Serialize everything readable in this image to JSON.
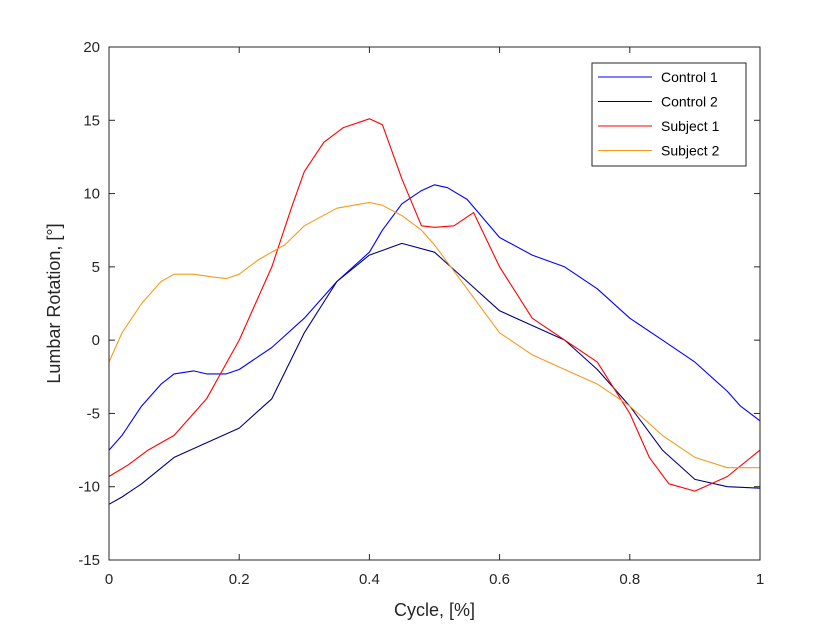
{
  "chart_data": {
    "type": "line",
    "title": "",
    "xlabel": "Cycle, [%]",
    "ylabel": "Lumbar Rotation, [°]",
    "xlim": [
      0,
      1
    ],
    "ylim": [
      -15,
      20
    ],
    "xticks": [
      0,
      0.2,
      0.4,
      0.6,
      0.8,
      1
    ],
    "xtick_labels": [
      "0",
      "0.2",
      "0.4",
      "0.6",
      "0.8",
      "1"
    ],
    "yticks": [
      -15,
      -10,
      -5,
      0,
      5,
      10,
      15,
      20
    ],
    "ytick_labels": [
      "-15",
      "-10",
      "-5",
      "0",
      "5",
      "10",
      "15",
      "20"
    ],
    "grid": false,
    "legend_position": "top-right",
    "series": [
      {
        "name": "Control 1",
        "color": "#0000ff",
        "x": [
          0,
          0.02,
          0.05,
          0.08,
          0.1,
          0.13,
          0.15,
          0.18,
          0.2,
          0.25,
          0.3,
          0.35,
          0.4,
          0.42,
          0.45,
          0.48,
          0.5,
          0.52,
          0.55,
          0.6,
          0.65,
          0.7,
          0.75,
          0.8,
          0.85,
          0.9,
          0.95,
          0.97,
          1.0
        ],
        "y": [
          -7.5,
          -6.5,
          -4.5,
          -3.0,
          -2.3,
          -2.1,
          -2.3,
          -2.3,
          -2.0,
          -0.5,
          1.5,
          4.0,
          6.0,
          7.5,
          9.3,
          10.2,
          10.6,
          10.4,
          9.6,
          7.0,
          5.8,
          5.0,
          3.5,
          1.5,
          0.0,
          -1.5,
          -3.5,
          -4.5,
          -5.5
        ]
      },
      {
        "name": "Control 2",
        "color": "#000080",
        "x": [
          0,
          0.02,
          0.05,
          0.1,
          0.15,
          0.2,
          0.25,
          0.3,
          0.35,
          0.4,
          0.45,
          0.5,
          0.55,
          0.6,
          0.65,
          0.7,
          0.75,
          0.8,
          0.85,
          0.9,
          0.95,
          1.0
        ],
        "y": [
          -11.2,
          -10.7,
          -9.8,
          -8.0,
          -7.0,
          -6.0,
          -4.0,
          0.5,
          4.0,
          5.8,
          6.6,
          6.0,
          4.0,
          2.0,
          1.0,
          0.0,
          -2.0,
          -4.5,
          -7.5,
          -9.5,
          -10.0,
          -10.1
        ]
      },
      {
        "name": "Subject 1",
        "color": "#ff0000",
        "x": [
          0,
          0.03,
          0.06,
          0.1,
          0.15,
          0.2,
          0.25,
          0.28,
          0.3,
          0.33,
          0.36,
          0.4,
          0.42,
          0.45,
          0.48,
          0.5,
          0.53,
          0.56,
          0.6,
          0.65,
          0.7,
          0.75,
          0.8,
          0.83,
          0.86,
          0.9,
          0.95,
          1.0
        ],
        "y": [
          -9.3,
          -8.5,
          -7.5,
          -6.5,
          -4.0,
          0.0,
          5.0,
          9.0,
          11.5,
          13.5,
          14.5,
          15.1,
          14.7,
          11.0,
          7.8,
          7.7,
          7.8,
          8.7,
          5.0,
          1.5,
          0.0,
          -1.5,
          -5.0,
          -8.0,
          -9.8,
          -10.3,
          -9.3,
          -7.5
        ]
      },
      {
        "name": "Subject 2",
        "color": "#f59b1e",
        "x": [
          0,
          0.02,
          0.05,
          0.08,
          0.1,
          0.13,
          0.16,
          0.18,
          0.2,
          0.23,
          0.27,
          0.3,
          0.35,
          0.4,
          0.42,
          0.45,
          0.48,
          0.5,
          0.55,
          0.6,
          0.65,
          0.7,
          0.75,
          0.8,
          0.85,
          0.9,
          0.95,
          1.0
        ],
        "y": [
          -1.5,
          0.5,
          2.5,
          4.0,
          4.5,
          4.5,
          4.3,
          4.2,
          4.5,
          5.5,
          6.5,
          7.8,
          9.0,
          9.4,
          9.2,
          8.5,
          7.5,
          6.5,
          3.5,
          0.5,
          -1.0,
          -2.0,
          -3.0,
          -4.5,
          -6.5,
          -8.0,
          -8.7,
          -8.7
        ]
      }
    ]
  }
}
